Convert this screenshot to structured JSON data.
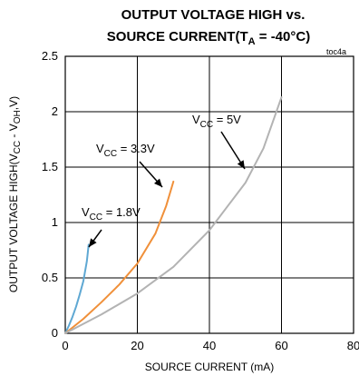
{
  "chart_data": {
    "type": "line",
    "title_line1": "OUTPUT VOLTAGE HIGH vs.",
    "title_line2_main": "SOURCE CURRENT(T",
    "title_line2_sub": "A",
    "title_line2_end": " = -40°C)",
    "figure_tag": "toc4a",
    "xlabel": "SOURCE CURRENT (mA)",
    "ylabel_main": "OUTPUT VOLTAGE HIGH(V",
    "ylabel_sub1": "CC",
    "ylabel_mid": " - V",
    "ylabel_sub2": "OH",
    "ylabel_end": ",V)",
    "xlim": [
      0,
      80
    ],
    "ylim": [
      0,
      2.5
    ],
    "x_ticks": [
      "0",
      "20",
      "40",
      "60",
      "80"
    ],
    "y_ticks": [
      "0",
      "0.5",
      "1",
      "1.5",
      "2",
      "2.5"
    ],
    "grid": true,
    "series": [
      {
        "name": "VCC = 1.8V",
        "label_main": "V",
        "label_sub": "CC",
        "label_end": " = 1.8V",
        "color": "#5fa8d3",
        "x": [
          0,
          1,
          2,
          3,
          4,
          5,
          6,
          6.5
        ],
        "y": [
          0,
          0.07,
          0.15,
          0.24,
          0.35,
          0.47,
          0.65,
          0.8
        ]
      },
      {
        "name": "VCC = 3.3V",
        "label_main": "V",
        "label_sub": "CC",
        "label_end": " = 3.3V",
        "color": "#f0903a",
        "x": [
          0,
          5,
          10,
          15,
          20,
          25,
          28,
          30
        ],
        "y": [
          0,
          0.13,
          0.28,
          0.44,
          0.63,
          0.9,
          1.15,
          1.37
        ]
      },
      {
        "name": "VCC = 5V",
        "label_main": "V",
        "label_sub": "CC",
        "label_end": " = 5V",
        "color": "#b3b3b3",
        "x": [
          0,
          10,
          20,
          30,
          40,
          50,
          55,
          60
        ],
        "y": [
          0,
          0.17,
          0.36,
          0.6,
          0.93,
          1.36,
          1.67,
          2.13
        ]
      }
    ]
  }
}
